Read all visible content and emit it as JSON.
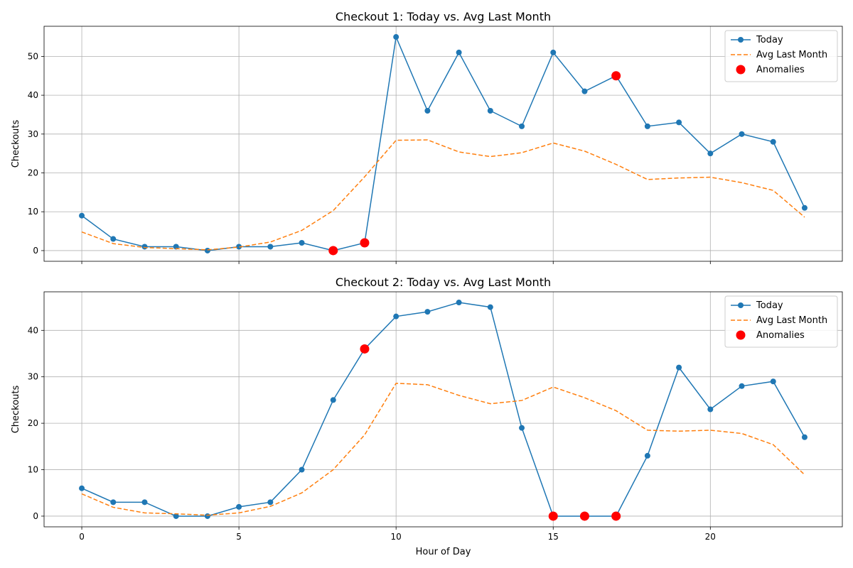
{
  "colors": {
    "today": "#1f77b4",
    "avg": "#ff7f0e",
    "anomaly": "#ff0000",
    "grid": "#b0b0b0",
    "axis": "#000000"
  },
  "legend": {
    "today": "Today",
    "avg": "Avg Last Month",
    "anomalies": "Anomalies",
    "placement": "top-right"
  },
  "chart_data": [
    {
      "type": "line",
      "title": "Checkout 1: Today vs. Avg Last Month",
      "xlabel": "",
      "ylabel": "Checkouts",
      "xlim": [
        -1.2,
        24.2
      ],
      "ylim": [
        -2.75,
        57.75
      ],
      "xticks": [
        0,
        5,
        10,
        15,
        20
      ],
      "yticks": [
        0,
        10,
        20,
        30,
        40,
        50
      ],
      "grid": true,
      "x": [
        0,
        1,
        2,
        3,
        4,
        5,
        6,
        7,
        8,
        9,
        10,
        11,
        12,
        13,
        14,
        15,
        16,
        17,
        18,
        19,
        20,
        21,
        22,
        23
      ],
      "series": [
        {
          "name": "Today",
          "style": "solid-markers",
          "values": [
            9,
            3,
            1,
            1,
            0,
            1,
            1,
            2,
            0,
            2,
            55,
            36,
            51,
            36,
            32,
            51,
            41,
            45,
            32,
            33,
            25,
            30,
            28,
            11
          ]
        },
        {
          "name": "Avg Last Month",
          "style": "dashed",
          "values": [
            4.8,
            1.8,
            0.8,
            0.5,
            0.2,
            0.9,
            2.2,
            5.2,
            10.3,
            19.0,
            28.4,
            28.5,
            25.4,
            24.2,
            25.2,
            27.7,
            25.6,
            22.2,
            18.3,
            18.7,
            18.9,
            17.5,
            15.5,
            8.6
          ]
        }
      ],
      "anomalies": {
        "name": "Anomalies",
        "x": [
          8,
          9,
          17
        ],
        "y": [
          0,
          2,
          45
        ]
      }
    },
    {
      "type": "line",
      "title": "Checkout 2: Today vs. Avg Last Month",
      "xlabel": "Hour of Day",
      "ylabel": "Checkouts",
      "xlim": [
        -1.2,
        24.2
      ],
      "ylim": [
        -2.3,
        48.3
      ],
      "xticks": [
        0,
        5,
        10,
        15,
        20
      ],
      "yticks": [
        0,
        10,
        20,
        30,
        40
      ],
      "grid": true,
      "x": [
        0,
        1,
        2,
        3,
        4,
        5,
        6,
        7,
        8,
        9,
        10,
        11,
        12,
        13,
        14,
        15,
        16,
        17,
        18,
        19,
        20,
        21,
        22,
        23
      ],
      "series": [
        {
          "name": "Today",
          "style": "solid-markers",
          "values": [
            6,
            3,
            3,
            0,
            0,
            2,
            3,
            10,
            25,
            36,
            43,
            44,
            46,
            45,
            19,
            0,
            0,
            0,
            13,
            32,
            23,
            28,
            29,
            17
          ]
        },
        {
          "name": "Avg Last Month",
          "style": "dashed",
          "values": [
            4.8,
            1.9,
            0.7,
            0.5,
            0.2,
            0.7,
            2.1,
            5.0,
            10.0,
            17.5,
            28.6,
            28.3,
            26.0,
            24.2,
            24.9,
            27.8,
            25.5,
            22.7,
            18.5,
            18.3,
            18.5,
            17.8,
            15.4,
            8.9
          ]
        }
      ],
      "anomalies": {
        "name": "Anomalies",
        "x": [
          9,
          15,
          16,
          17
        ],
        "y": [
          36,
          0,
          0,
          0
        ]
      }
    }
  ]
}
